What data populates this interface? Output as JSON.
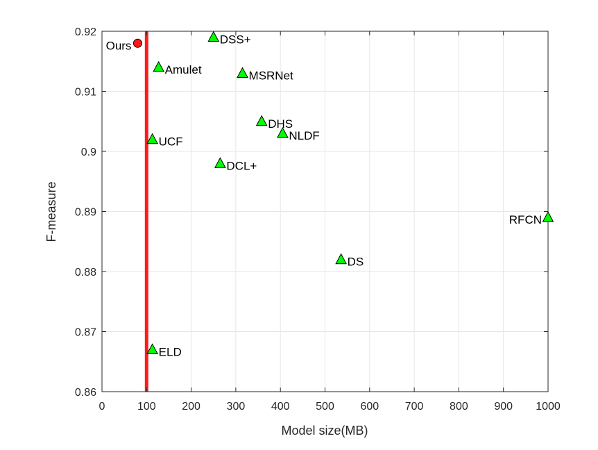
{
  "chart_data": {
    "type": "scatter",
    "title": "",
    "xlabel": "Model size(MB)",
    "ylabel": "F-measure",
    "xlim": [
      0,
      1000
    ],
    "ylim": [
      0.86,
      0.92
    ],
    "xticks": [
      0,
      100,
      200,
      300,
      400,
      500,
      600,
      700,
      800,
      900,
      1000
    ],
    "xtick_labels": [
      "0",
      "100",
      "200",
      "300",
      "400",
      "500",
      "600",
      "700",
      "800",
      "900",
      "1000"
    ],
    "yticks": [
      0.86,
      0.87,
      0.88,
      0.89,
      0.9,
      0.91,
      0.92
    ],
    "ytick_labels": [
      "0.86",
      "0.87",
      "0.88",
      "0.89",
      "0.9",
      "0.91",
      "0.92"
    ],
    "grid": true,
    "reference_line": {
      "x": 100,
      "color": "#ff1a1a"
    },
    "points": [
      {
        "label": "Ours",
        "x": 80,
        "y": 0.918,
        "marker": "circle",
        "color": "#ff1a1a",
        "label_color": "#ff1a1a",
        "label_side": "left"
      },
      {
        "label": "DSS+",
        "x": 250,
        "y": 0.919,
        "marker": "triangle",
        "color": "#00ff00",
        "label_color": "#000000",
        "label_side": "right"
      },
      {
        "label": "Amulet",
        "x": 127,
        "y": 0.914,
        "marker": "triangle",
        "color": "#00ff00",
        "label_color": "#000000",
        "label_side": "right"
      },
      {
        "label": "MSRNet",
        "x": 315,
        "y": 0.913,
        "marker": "triangle",
        "color": "#00ff00",
        "label_color": "#000000",
        "label_side": "right"
      },
      {
        "label": "DHS",
        "x": 358,
        "y": 0.905,
        "marker": "triangle",
        "color": "#00ff00",
        "label_color": "#000000",
        "label_side": "right"
      },
      {
        "label": "NLDF",
        "x": 405,
        "y": 0.903,
        "marker": "triangle",
        "color": "#00ff00",
        "label_color": "#000000",
        "label_side": "right"
      },
      {
        "label": "UCF",
        "x": 113,
        "y": 0.902,
        "marker": "triangle",
        "color": "#00ff00",
        "label_color": "#000000",
        "label_side": "right"
      },
      {
        "label": "DCL+",
        "x": 265,
        "y": 0.898,
        "marker": "triangle",
        "color": "#00ff00",
        "label_color": "#000000",
        "label_side": "right"
      },
      {
        "label": "RFCN",
        "x": 1000,
        "y": 0.889,
        "marker": "triangle",
        "color": "#00ff00",
        "label_color": "#000000",
        "label_side": "left"
      },
      {
        "label": "DS",
        "x": 536,
        "y": 0.882,
        "marker": "triangle",
        "color": "#00ff00",
        "label_color": "#000000",
        "label_side": "right"
      },
      {
        "label": "ELD",
        "x": 113,
        "y": 0.867,
        "marker": "triangle",
        "color": "#00ff00",
        "label_color": "#000000",
        "label_side": "right"
      }
    ]
  }
}
